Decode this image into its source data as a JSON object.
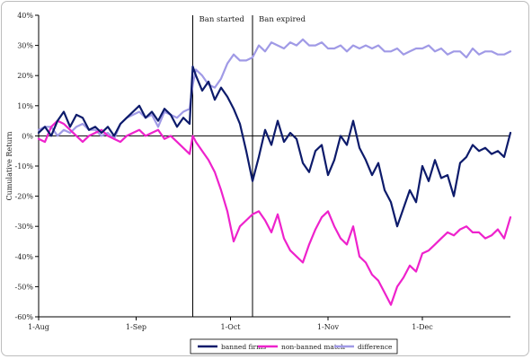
{
  "chart_data": {
    "type": "line",
    "title": "",
    "xlabel": "",
    "ylabel": "Cumulative Return",
    "ylim": [
      -60,
      40
    ],
    "xlim_days": [
      0,
      150
    ],
    "y_ticks": [
      {
        "value": 40,
        "label": "40%"
      },
      {
        "value": 30,
        "label": "30%"
      },
      {
        "value": 20,
        "label": "20%"
      },
      {
        "value": 10,
        "label": "10%"
      },
      {
        "value": 0,
        "label": "0%"
      },
      {
        "value": -10,
        "label": "-10%"
      },
      {
        "value": -20,
        "label": "-20%"
      },
      {
        "value": -30,
        "label": "-30%"
      },
      {
        "value": -40,
        "label": "-40%"
      },
      {
        "value": -50,
        "label": "-50%"
      },
      {
        "value": -60,
        "label": "-60%"
      }
    ],
    "x_ticks": [
      {
        "day": 0,
        "label": "1-Aug"
      },
      {
        "day": 31,
        "label": "1-Sep"
      },
      {
        "day": 61,
        "label": "1-Oct"
      },
      {
        "day": 92,
        "label": "1-Nov"
      },
      {
        "day": 122,
        "label": "1-Dec"
      }
    ],
    "annotations": [
      {
        "label": "Ban started",
        "day": 49
      },
      {
        "label": "Ban expired",
        "day": 68
      }
    ],
    "legend_position": "bottom",
    "x": [
      0,
      2,
      4,
      6,
      8,
      10,
      12,
      14,
      16,
      18,
      20,
      22,
      24,
      26,
      28,
      30,
      32,
      34,
      36,
      38,
      40,
      42,
      44,
      46,
      48,
      49,
      50,
      52,
      54,
      56,
      58,
      60,
      62,
      64,
      66,
      68,
      70,
      72,
      74,
      76,
      78,
      80,
      82,
      84,
      86,
      88,
      90,
      92,
      94,
      96,
      98,
      100,
      102,
      104,
      106,
      108,
      110,
      112,
      114,
      116,
      118,
      120,
      122,
      124,
      126,
      128,
      130,
      132,
      134,
      136,
      138,
      140,
      142,
      144,
      146,
      148,
      150
    ],
    "series": [
      {
        "name": "banned firms",
        "color": "#0d1b6b",
        "values": [
          1,
          3,
          0,
          5,
          8,
          3,
          7,
          6,
          2,
          3,
          1,
          3,
          0,
          4,
          6,
          8,
          10,
          6,
          8,
          5,
          9,
          7,
          3,
          6,
          4,
          23,
          20,
          15,
          18,
          12,
          16,
          13,
          9,
          4,
          -5,
          -15,
          -7,
          2,
          -3,
          5,
          -2,
          1,
          -1,
          -9,
          -12,
          -5,
          -3,
          -13,
          -8,
          0,
          -3,
          5,
          -4,
          -8,
          -13,
          -9,
          -18,
          -22,
          -30,
          -24,
          -18,
          -22,
          -10,
          -15,
          -8,
          -14,
          -13,
          -20,
          -9,
          -7,
          -3,
          -5,
          -4,
          -6,
          -5,
          -7,
          1
        ]
      },
      {
        "name": "non-banned match",
        "color": "#ee22cc",
        "values": [
          -1,
          -2,
          3,
          5,
          4,
          2,
          0,
          -2,
          0,
          1,
          2,
          0,
          -1,
          -2,
          0,
          1,
          2,
          0,
          1,
          2,
          -1,
          0,
          -2,
          -4,
          -6,
          0,
          -2,
          -5,
          -8,
          -12,
          -18,
          -25,
          -35,
          -30,
          -28,
          -26,
          -25,
          -28,
          -32,
          -26,
          -34,
          -38,
          -40,
          -42,
          -36,
          -31,
          -27,
          -25,
          -30,
          -34,
          -36,
          -30,
          -40,
          -42,
          -46,
          -48,
          -52,
          -56,
          -50,
          -47,
          -43,
          -45,
          -39,
          -38,
          -36,
          -34,
          -32,
          -33,
          -31,
          -30,
          -32,
          -32,
          -34,
          -33,
          -31,
          -34,
          -27
        ]
      },
      {
        "name": "difference",
        "color": "#a09ae6",
        "values": [
          2,
          3,
          3,
          0,
          2,
          1,
          3,
          4,
          2,
          2,
          0,
          1,
          -1,
          4,
          6,
          7,
          8,
          6,
          7,
          3,
          8,
          7,
          6,
          8,
          9,
          17,
          22,
          20,
          17,
          16,
          19,
          24,
          27,
          25,
          25,
          26,
          30,
          28,
          31,
          30,
          29,
          31,
          30,
          32,
          30,
          30,
          31,
          29,
          29,
          30,
          28,
          30,
          29,
          30,
          29,
          30,
          28,
          28,
          29,
          27,
          28,
          29,
          29,
          30,
          28,
          29,
          27,
          28,
          28,
          26,
          29,
          27,
          28,
          28,
          27,
          27,
          28
        ]
      }
    ]
  }
}
